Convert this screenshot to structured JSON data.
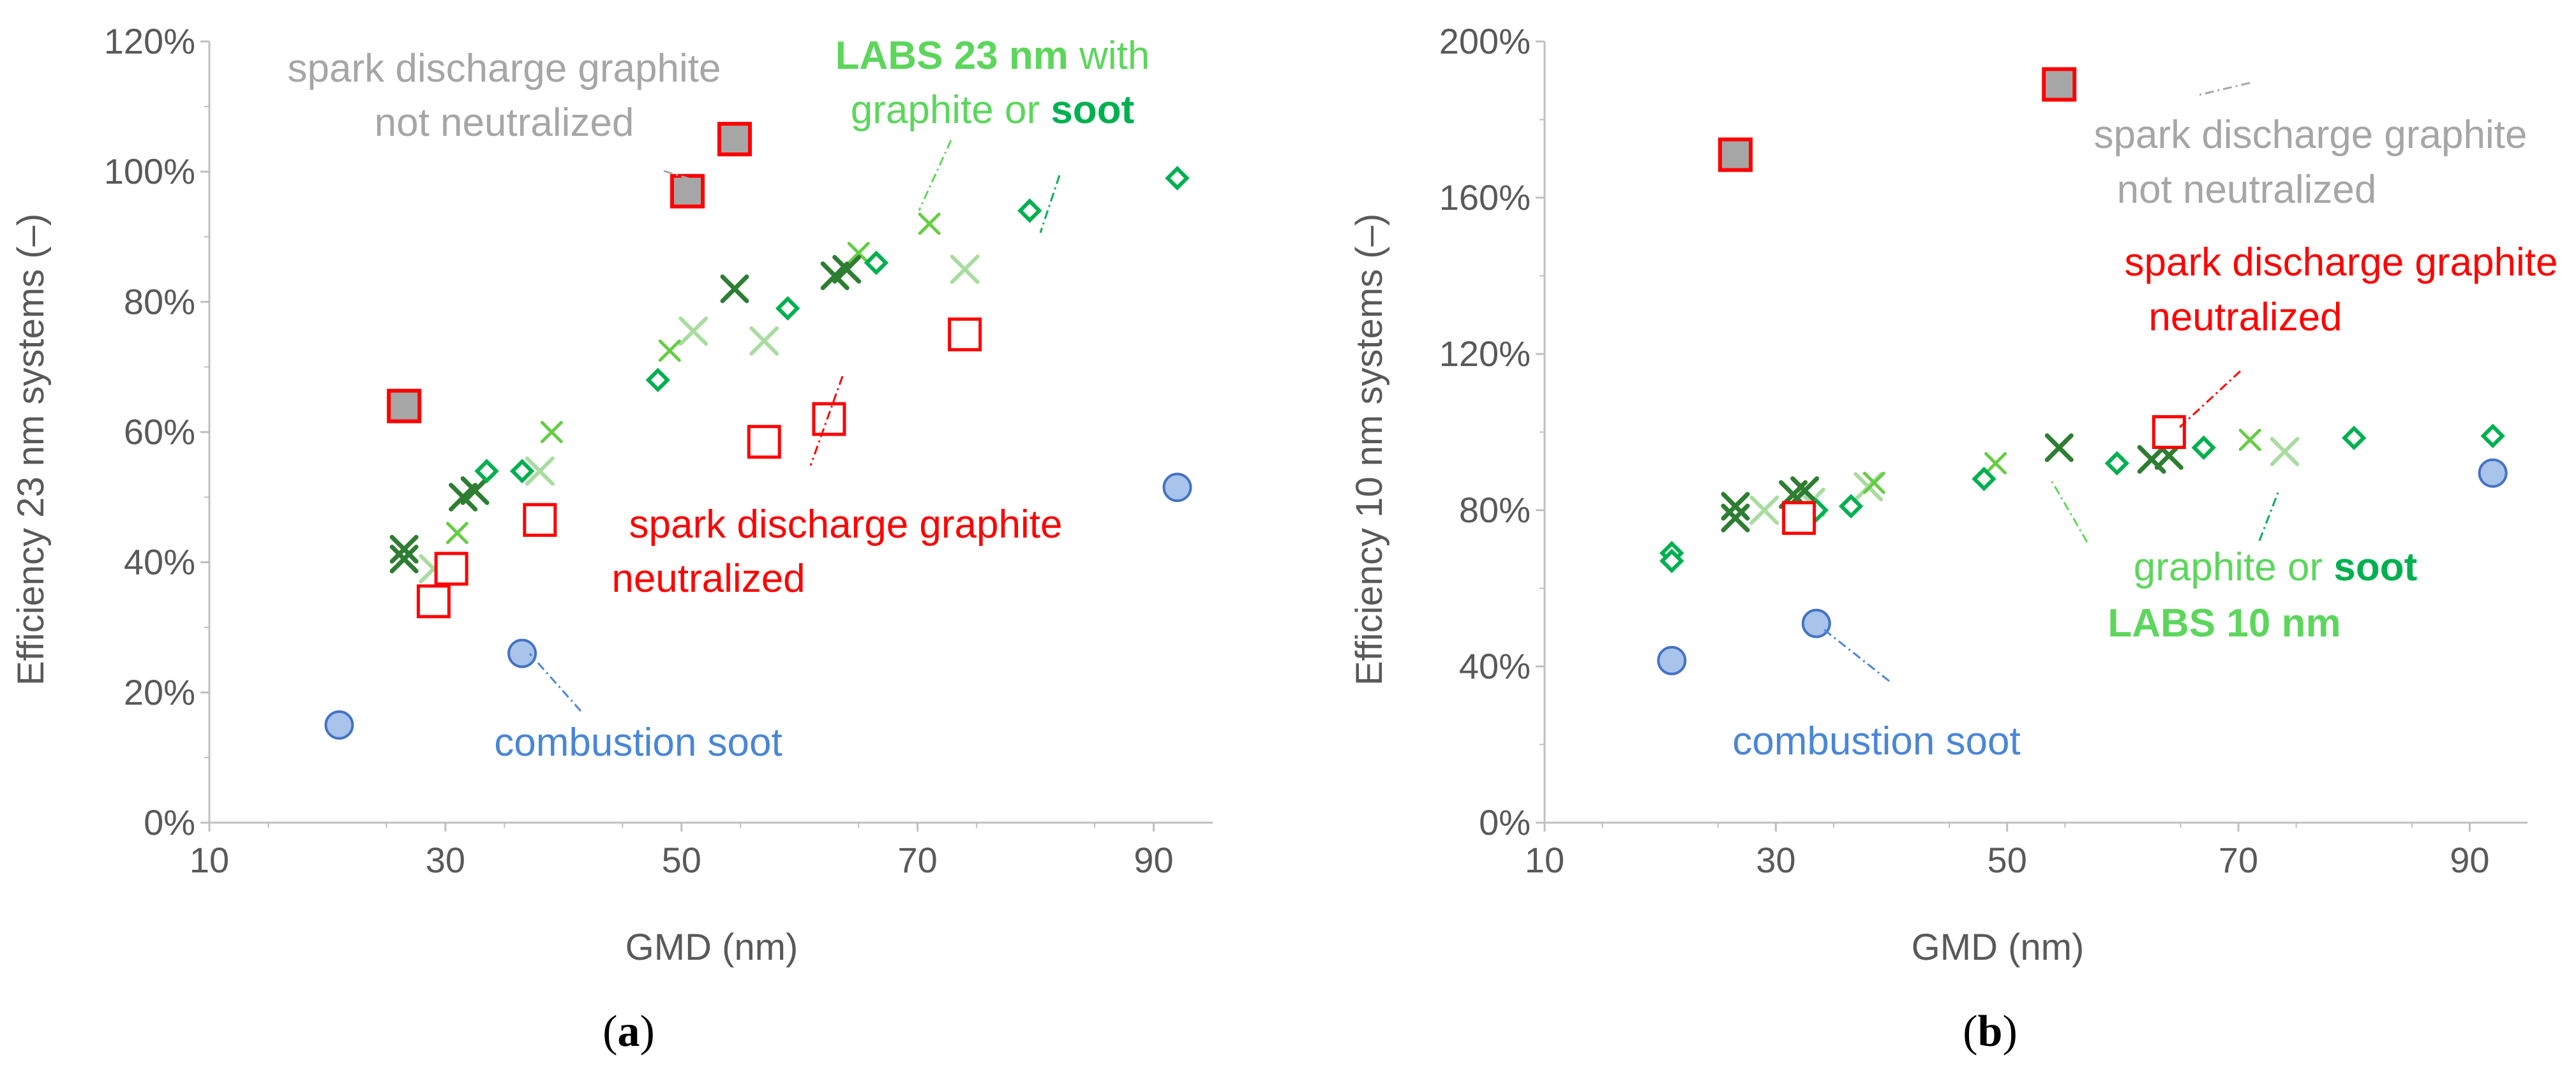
{
  "colors": {
    "gray_fill": "#a6a6a6",
    "red": "#ff0000",
    "soot_fill": "#a8c4ea",
    "soot_stroke": "#4472c4",
    "soot_text": "#4a86d6",
    "gray_text": "#a6a6a6",
    "labs_green": "#5cd65c",
    "soot_green": "#00b050",
    "dark_green": "#2e7d32",
    "mid_green": "#66cc44",
    "light_green": "#a9dca0"
  },
  "chart_data": [
    {
      "type": "scatter",
      "panel_label": "(a)",
      "xlabel": "GMD (nm)",
      "ylabel": "Efficiency 23 nm systems (–)",
      "xlim": [
        10,
        95
      ],
      "ylim": [
        0,
        120
      ],
      "xticks": [
        10,
        30,
        50,
        70,
        90
      ],
      "yticks": [
        0,
        20,
        40,
        60,
        80,
        100,
        120
      ],
      "ytick_labels": [
        "0%",
        "20%",
        "40%",
        "60%",
        "80%",
        "100%",
        "120%"
      ],
      "grid": false,
      "series": [
        {
          "name": "spark discharge graphite not neutralized",
          "marker": "square-filled",
          "points": [
            [
              26.5,
              64
            ],
            [
              50.5,
              97
            ],
            [
              54.5,
              105
            ]
          ]
        },
        {
          "name": "spark discharge graphite neutralized",
          "marker": "square-open",
          "points": [
            [
              29,
              34
            ],
            [
              30.5,
              39
            ],
            [
              38,
              46.5
            ],
            [
              57,
              58.5
            ],
            [
              62.5,
              62
            ],
            [
              74,
              75
            ]
          ]
        },
        {
          "name": "combustion soot",
          "marker": "circle",
          "points": [
            [
              21,
              15
            ],
            [
              36.5,
              26
            ],
            [
              92,
              51.5
            ]
          ]
        },
        {
          "name": "soot",
          "marker": "diamond",
          "points": [
            [
              21,
              15
            ],
            [
              33.5,
              54
            ],
            [
              36.5,
              54
            ],
            [
              48,
              68
            ],
            [
              59,
              79
            ],
            [
              66.5,
              86
            ],
            [
              79.5,
              94
            ],
            [
              92,
              99
            ]
          ]
        },
        {
          "name": "graphite",
          "marker": "x-mid",
          "points": [
            [
              31,
              44.5
            ],
            [
              39,
              60
            ],
            [
              49,
              72.5
            ],
            [
              65,
              87.5
            ],
            [
              71,
              92
            ]
          ]
        },
        {
          "name": "",
          "marker": "x-dark",
          "points": [
            [
              26.5,
              42
            ],
            [
              26.5,
              40.5
            ],
            [
              31.5,
              50
            ],
            [
              32.5,
              51
            ],
            [
              54.5,
              82
            ],
            [
              63,
              84
            ],
            [
              64,
              85
            ]
          ]
        },
        {
          "name": "",
          "marker": "x-light",
          "points": [
            [
              29,
              39
            ],
            [
              38,
              54
            ],
            [
              51,
              75.5
            ],
            [
              57,
              74
            ],
            [
              74,
              85
            ]
          ]
        }
      ],
      "annotations": {
        "not_neutralized": [
          "spark discharge graphite",
          "not neutralized"
        ],
        "neutralized": [
          "spark discharge graphite",
          "neutralized"
        ],
        "combustion": "combustion soot",
        "labs_line1_bold": "LABS 23 nm",
        "labs_line1_rest": " with",
        "labs_line2_a": "graphite or ",
        "labs_line2_b": "soot"
      }
    },
    {
      "type": "scatter",
      "panel_label": "(b)",
      "xlabel": "GMD (nm)",
      "ylabel": "Efficiency 10 nm systems (–)",
      "xlim": [
        10,
        95
      ],
      "ylim": [
        0,
        200
      ],
      "xticks": [
        10,
        30,
        50,
        70,
        90
      ],
      "yticks": [
        0,
        40,
        80,
        120,
        160,
        200
      ],
      "ytick_labels": [
        "0%",
        "40%",
        "80%",
        "120%",
        "160%",
        "200%"
      ],
      "grid": false,
      "series": [
        {
          "name": "spark discharge graphite not neutralized",
          "marker": "square-filled",
          "points": [
            [
              26.5,
              171
            ],
            [
              54.5,
              189
            ]
          ]
        },
        {
          "name": "spark discharge graphite neutralized",
          "marker": "square-open",
          "points": [
            [
              32,
              78
            ],
            [
              64,
              100
            ]
          ]
        },
        {
          "name": "combustion soot",
          "marker": "circle",
          "points": [
            [
              21,
              41.5
            ],
            [
              33.5,
              51
            ],
            [
              92,
              89.5
            ]
          ]
        },
        {
          "name": "soot",
          "marker": "diamond",
          "points": [
            [
              21,
              69
            ],
            [
              21,
              67
            ],
            [
              33.5,
              80
            ],
            [
              36.5,
              81
            ],
            [
              48,
              88
            ],
            [
              59.5,
              92
            ],
            [
              67,
              96
            ],
            [
              80,
              98.5
            ],
            [
              92,
              99
            ]
          ]
        },
        {
          "name": "graphite",
          "marker": "x-mid",
          "points": [
            [
              49,
              92
            ],
            [
              71,
              98
            ],
            [
              38.5,
              87
            ]
          ]
        },
        {
          "name": "",
          "marker": "x-dark",
          "points": [
            [
              26.5,
              81
            ],
            [
              26.5,
              78
            ],
            [
              31.5,
              84
            ],
            [
              32.5,
              85
            ],
            [
              54.5,
              96
            ],
            [
              62.5,
              93
            ],
            [
              64,
              94
            ]
          ]
        },
        {
          "name": "",
          "marker": "x-light",
          "points": [
            [
              29,
              80
            ],
            [
              38,
              86
            ],
            [
              74,
              95
            ],
            [
              33,
              82
            ]
          ]
        }
      ],
      "annotations": {
        "not_neutralized": [
          "spark discharge graphite",
          "not neutralized"
        ],
        "neutralized": [
          "spark discharge graphite",
          "neutralized"
        ],
        "combustion": "combustion soot",
        "labs_line1_a": "graphite or ",
        "labs_line1_b": "soot",
        "labs_line2_bold": "LABS 10 nm"
      }
    }
  ]
}
